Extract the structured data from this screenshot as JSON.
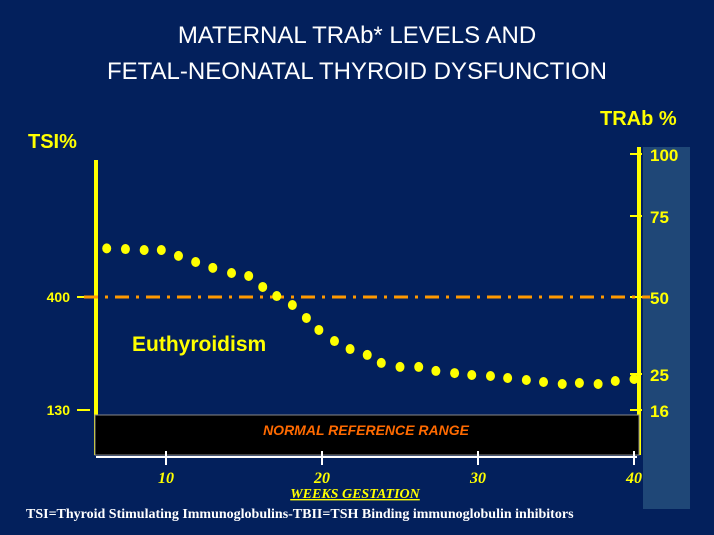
{
  "title_line1": "MATERNAL TRAb* LEVELS AND",
  "title_line2": "FETAL-NEONATAL THYROID DYSFUNCTION",
  "footnote": "TSI=Thyroid Stimulating Immunoglobulins-TBII=TSH Binding immunoglobulin inhibitors",
  "chart_data": {
    "type": "scatter",
    "title": "MATERNAL TRAb* LEVELS AND FETAL-NEONATAL THYROID DYSFUNCTION",
    "xlabel": "WEEKS GESTATION",
    "ylabel_left": "TSI%",
    "ylabel_right": "TRAb %",
    "x_ticks": [
      10,
      20,
      30,
      40
    ],
    "left_ticks": [
      {
        "label": "400",
        "trab": 50
      },
      {
        "label": "130",
        "trab": 16
      }
    ],
    "right_ticks": [
      100,
      75,
      50,
      25,
      16
    ],
    "threshold": {
      "value": 50,
      "style": "dash-dot",
      "color": "#ff9900"
    },
    "annotations": [
      "Euthyroidism",
      "NORMAL REFERENCE RANGE"
    ],
    "series": [
      {
        "name": "TRAb %",
        "color": "#ffff00",
        "x": [
          6.2,
          7.4,
          8.6,
          9.7,
          10.8,
          11.9,
          13,
          14.2,
          15.3,
          16.2,
          17.1,
          18.1,
          19,
          19.8,
          20.8,
          21.8,
          22.9,
          23.8,
          25,
          26.2,
          27.3,
          28.5,
          29.6,
          30.8,
          31.9,
          33.1,
          34.2,
          35.4,
          36.5,
          37.7,
          38.8,
          40
        ],
        "y": [
          65,
          64.8,
          64.5,
          64.5,
          62.7,
          60.8,
          59,
          57.4,
          56.5,
          53.1,
          50.3,
          47.4,
          43.2,
          39.3,
          35.7,
          33.1,
          31.2,
          28.6,
          27.3,
          27.3,
          26,
          25.3,
          24.75,
          24.5,
          24,
          23.5,
          23,
          22.5,
          22.75,
          22.5,
          23.25,
          23.75
        ]
      }
    ]
  }
}
